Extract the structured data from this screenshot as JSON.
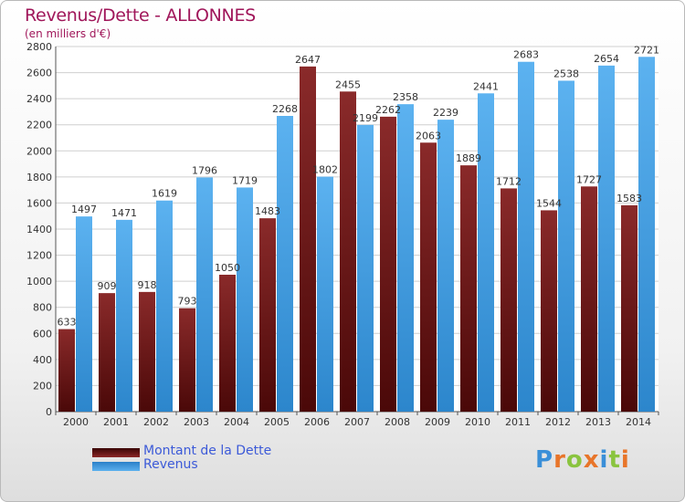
{
  "header": {
    "title": "Revenus/Dette - ALLONNES",
    "subtitle": "(en milliers d'€)"
  },
  "legend": {
    "items": [
      {
        "label": "Montant de la Dette",
        "color": "#6b1a1a"
      },
      {
        "label": "Revenus",
        "color": "#4aa0e0"
      }
    ]
  },
  "logo": {
    "letters": [
      "P",
      "r",
      "o",
      "x",
      "i",
      "t",
      "i"
    ],
    "colors": [
      "#3a8fd8",
      "#e8752a",
      "#8ac43f",
      "#e8752a",
      "#3a8fd8",
      "#8ac43f",
      "#e8752a"
    ]
  },
  "chart_data": {
    "type": "bar",
    "categories": [
      "2000",
      "2001",
      "2002",
      "2003",
      "2004",
      "2005",
      "2006",
      "2007",
      "2008",
      "2009",
      "2010",
      "2011",
      "2012",
      "2013",
      "2014"
    ],
    "series": [
      {
        "name": "Montant de la Dette",
        "color": "#7a1e1e",
        "values": [
          633,
          909,
          918,
          793,
          1050,
          1483,
          2647,
          2455,
          2262,
          2063,
          1889,
          1712,
          1544,
          1727,
          1583
        ],
        "labels": [
          "633",
          "909",
          "918",
          "793",
          "1050",
          "1483",
          "2647",
          "2455",
          "2262",
          "2063",
          "1889",
          "1712",
          "1544",
          "1727",
          "1583"
        ]
      },
      {
        "name": "Revenus",
        "color": "#4aa0e0",
        "values": [
          1497,
          1471,
          1619,
          1796,
          1719,
          2268,
          1802,
          2199,
          2358,
          2239,
          2441,
          2683,
          2538,
          2654,
          2721
        ],
        "labels": [
          "1497",
          "1471",
          "1619",
          "1796",
          "1719",
          "2268",
          "1802",
          "2199",
          "2358",
          "2239",
          "2441",
          "2683",
          "2538",
          "2654",
          "2721"
        ]
      }
    ],
    "ylim": [
      0,
      2800
    ],
    "yticks": [
      0,
      200,
      400,
      600,
      800,
      1000,
      1200,
      1400,
      1600,
      1800,
      2000,
      2200,
      2400,
      2600,
      2800
    ],
    "grid": true
  }
}
